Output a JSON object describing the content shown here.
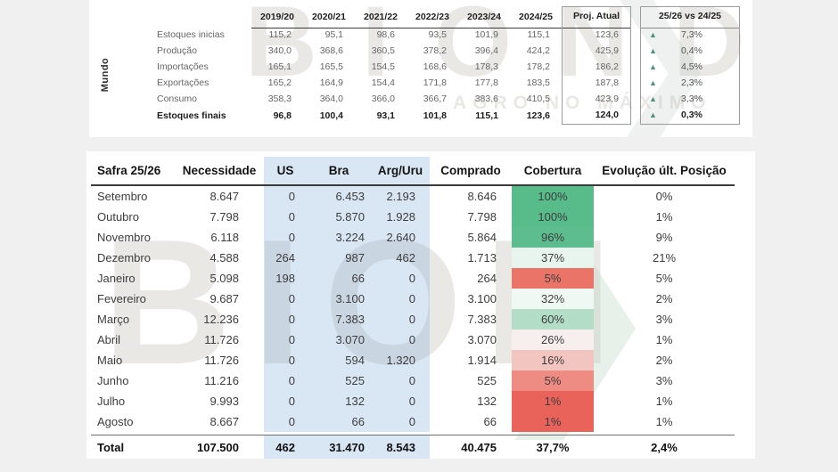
{
  "colors": {
    "page_bg": "#f0f0f0",
    "panel_bg": "#ffffff",
    "blue_band": "#dbe8f6",
    "up_triangle": "#4f937c",
    "cobertura_green_full": "#57bb8a",
    "cobertura_red_full": "#e9635b"
  },
  "watermark": {
    "top_text": "BIOND",
    "top_sub": "AGRO NO MÁXIMO",
    "bottom_text": "BION",
    "chevron": "❯"
  },
  "world": {
    "region_label": "Mundo",
    "up_icon": "▲",
    "year_headers": [
      "2019/20",
      "2020/21",
      "2021/22",
      "2022/23",
      "2023/24",
      "2024/25"
    ],
    "proj_header": "Proj. Atual",
    "vs_header": "25/26 vs 24/25",
    "rows": [
      {
        "label": "Estoques inicias",
        "values": [
          "115,2",
          "95,1",
          "98,6",
          "93,5",
          "101,9",
          "115,1"
        ],
        "proj": "123,6",
        "vs": "7,3%"
      },
      {
        "label": "Produção",
        "values": [
          "340,0",
          "368,6",
          "360,5",
          "378,2",
          "396,4",
          "424,2"
        ],
        "proj": "425,9",
        "vs": "0,4%"
      },
      {
        "label": "Importações",
        "values": [
          "165,1",
          "165,5",
          "154,5",
          "168,6",
          "178,3",
          "178,2"
        ],
        "proj": "186,2",
        "vs": "4,5%"
      },
      {
        "label": "Exportações",
        "values": [
          "165,2",
          "164,9",
          "154,4",
          "171,8",
          "177,8",
          "183,5"
        ],
        "proj": "187,8",
        "vs": "2,3%"
      },
      {
        "label": "Consumo",
        "values": [
          "358,3",
          "364,0",
          "366,0",
          "366,7",
          "383,6",
          "410,5"
        ],
        "proj": "423,9",
        "vs": "3,3%"
      },
      {
        "label": "Estoques finais",
        "values": [
          "96,8",
          "100,4",
          "93,1",
          "101,8",
          "115,1",
          "123,6"
        ],
        "proj": "124,0",
        "vs": "0,3%"
      }
    ]
  },
  "safra": {
    "headers": [
      "Safra 25/26",
      "Necessidade",
      "US",
      "Bra",
      "Arg/Uru",
      "Comprado",
      "Cobertura",
      "Evolução últ. Posição"
    ],
    "rows": [
      {
        "month": "Setembro",
        "necessidade": "8.647",
        "us": "0",
        "bra": "6.453",
        "arg": "2.193",
        "comprado": "8.646",
        "cobertura": "100%",
        "cob_color": "#57bb8a",
        "evolucao": "0%"
      },
      {
        "month": "Outubro",
        "necessidade": "7.798",
        "us": "0",
        "bra": "5.870",
        "arg": "1.928",
        "comprado": "7.798",
        "cobertura": "100%",
        "cob_color": "#57bb8a",
        "evolucao": "1%"
      },
      {
        "month": "Novembro",
        "necessidade": "6.118",
        "us": "0",
        "bra": "3.224",
        "arg": "2.640",
        "comprado": "5.864",
        "cobertura": "96%",
        "cob_color": "#5dbd8e",
        "evolucao": "9%"
      },
      {
        "month": "Dezembro",
        "necessidade": "4.588",
        "us": "264",
        "bra": "987",
        "arg": "462",
        "comprado": "1.713",
        "cobertura": "37%",
        "cob_color": "#e8f4ee",
        "evolucao": "21%"
      },
      {
        "month": "Janeiro",
        "necessidade": "5.098",
        "us": "198",
        "bra": "66",
        "arg": "0",
        "comprado": "264",
        "cobertura": "5%",
        "cob_color": "#ea7468",
        "evolucao": "5%"
      },
      {
        "month": "Fevereiro",
        "necessidade": "9.687",
        "us": "0",
        "bra": "3.100",
        "arg": "0",
        "comprado": "3.100",
        "cobertura": "32%",
        "cob_color": "#f0f8f3",
        "evolucao": "2%"
      },
      {
        "month": "Março",
        "necessidade": "12.236",
        "us": "0",
        "bra": "7.383",
        "arg": "0",
        "comprado": "7.383",
        "cobertura": "60%",
        "cob_color": "#b3ddc6",
        "evolucao": "3%"
      },
      {
        "month": "Abril",
        "necessidade": "11.726",
        "us": "0",
        "bra": "3.070",
        "arg": "0",
        "comprado": "3.070",
        "cobertura": "26%",
        "cob_color": "#f6efed",
        "evolucao": "1%"
      },
      {
        "month": "Maio",
        "necessidade": "11.726",
        "us": "0",
        "bra": "594",
        "arg": "1.320",
        "comprado": "1.914",
        "cobertura": "16%",
        "cob_color": "#f3c5c0",
        "evolucao": "2%"
      },
      {
        "month": "Junho",
        "necessidade": "11.216",
        "us": "0",
        "bra": "525",
        "arg": "0",
        "comprado": "525",
        "cobertura": "5%",
        "cob_color": "#ee8b82",
        "evolucao": "3%"
      },
      {
        "month": "Julho",
        "necessidade": "9.993",
        "us": "0",
        "bra": "132",
        "arg": "0",
        "comprado": "132",
        "cobertura": "1%",
        "cob_color": "#e9635b",
        "evolucao": "1%"
      },
      {
        "month": "Agosto",
        "necessidade": "8.667",
        "us": "0",
        "bra": "66",
        "arg": "0",
        "comprado": "66",
        "cobertura": "1%",
        "cob_color": "#e9635b",
        "evolucao": "1%"
      }
    ],
    "total": {
      "month": "Total",
      "necessidade": "107.500",
      "us": "462",
      "bra": "31.470",
      "arg": "8.543",
      "comprado": "40.475",
      "cobertura": "37,7%",
      "evolucao": "2,4%"
    }
  }
}
